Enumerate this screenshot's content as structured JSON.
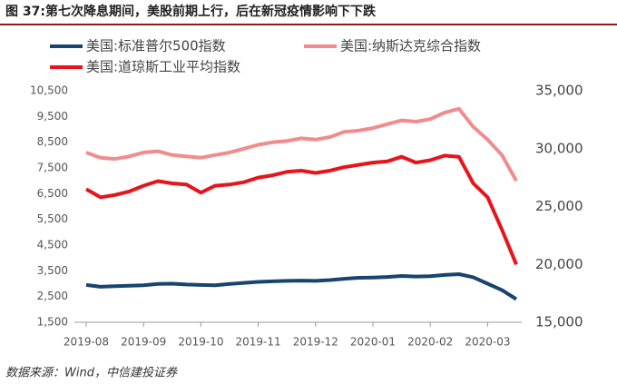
{
  "chart_data": {
    "type": "line",
    "title": "图 37:第七次降息期间，美股前期上行，后在新冠疫情影响下下跌",
    "source": "数据来源：Wind，中信建投证券",
    "categories": [
      "2019-08",
      null,
      null,
      null,
      "2019-09",
      null,
      null,
      null,
      "2019-10",
      null,
      null,
      null,
      "2019-11",
      null,
      null,
      null,
      "2019-12",
      null,
      null,
      null,
      "2020-01",
      null,
      null,
      null,
      "2020-02",
      null,
      null,
      null,
      "2020-03",
      null,
      null
    ],
    "series": [
      {
        "name": "美国:标准普尔500指数",
        "color": "#17456e",
        "axis": "y",
        "values": [
          2950,
          2880,
          2900,
          2920,
          2940,
          2990,
          3000,
          2970,
          2950,
          2940,
          2990,
          3030,
          3070,
          3090,
          3110,
          3120,
          3110,
          3140,
          3190,
          3230,
          3240,
          3260,
          3300,
          3280,
          3290,
          3340,
          3370,
          3250,
          3000,
          2750,
          2400
        ]
      },
      {
        "name": "美国:纳斯达克综合指数",
        "color": "#f28b8b",
        "axis": "y",
        "values": [
          8100,
          7900,
          7850,
          7950,
          8100,
          8150,
          8000,
          7950,
          7900,
          8000,
          8100,
          8250,
          8400,
          8500,
          8550,
          8650,
          8600,
          8700,
          8900,
          8950,
          9050,
          9200,
          9350,
          9300,
          9400,
          9650,
          9800,
          9100,
          8600,
          8000,
          7000
        ]
      },
      {
        "name": "美国:道琼斯工业平均指数",
        "color": "#e8141b",
        "axis": "y2",
        "values": [
          26500,
          25800,
          26000,
          26300,
          26800,
          27200,
          27000,
          26900,
          26200,
          26800,
          26900,
          27100,
          27500,
          27700,
          28000,
          28100,
          27900,
          28100,
          28400,
          28600,
          28800,
          28900,
          29300,
          28800,
          29000,
          29400,
          29300,
          27000,
          25800,
          23000,
          20000
        ]
      }
    ],
    "ylim": [
      1500,
      10500
    ],
    "yticks": [
      {
        "value": 1500,
        "label": "1,500"
      },
      {
        "value": 2500,
        "label": "2,500"
      },
      {
        "value": 3500,
        "label": "3,500"
      },
      {
        "value": 4500,
        "label": "4,500"
      },
      {
        "value": 5500,
        "label": "5,500"
      },
      {
        "value": 6500,
        "label": "6,500"
      },
      {
        "value": 7500,
        "label": "7,500"
      },
      {
        "value": 8500,
        "label": "8,500"
      },
      {
        "value": 9500,
        "label": "9,500"
      },
      {
        "value": 10500,
        "label": "10,500"
      }
    ],
    "y2lim": [
      15000,
      35000
    ],
    "y2ticks": [
      {
        "value": 15000,
        "label": "15,000"
      },
      {
        "value": 20000,
        "label": "20,000"
      },
      {
        "value": 25000,
        "label": "25,000"
      },
      {
        "value": 30000,
        "label": "30,000"
      },
      {
        "value": 35000,
        "label": "35,000"
      }
    ],
    "grid": false
  }
}
